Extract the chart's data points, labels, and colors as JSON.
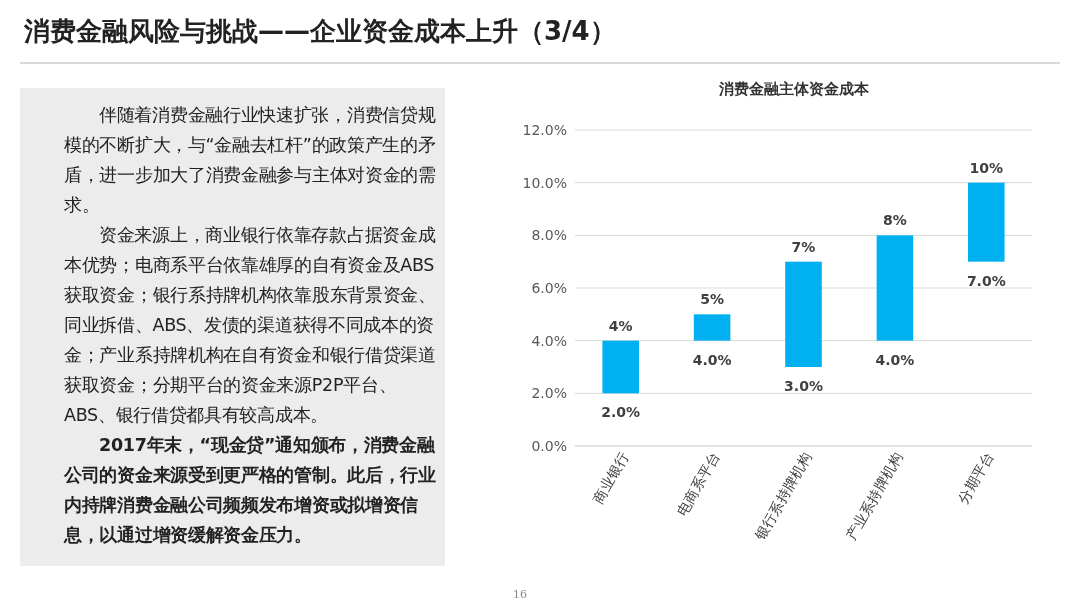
{
  "chart_data": {
    "type": "bar",
    "title": "消费金融风险与挑战——企业资金成本上升（3/4）",
    "subtitle": "消费金融主体资金成本",
    "categories": [
      "商业银行",
      "电商系平台",
      "银行系持牌机构",
      "产业系持牌机构",
      "分期平台"
    ],
    "base": [
      2,
      4,
      3,
      4,
      7
    ],
    "values": [
      2,
      1,
      4,
      4,
      3
    ],
    "color": "#00b0f0",
    "ylim": [
      0,
      12
    ],
    "yticks": [
      {
        "value": 0,
        "label": "0.0%"
      },
      {
        "value": 2,
        "label": "2.0%"
      },
      {
        "value": 4,
        "label": "4.0%"
      },
      {
        "value": 6,
        "label": "6.0%"
      },
      {
        "value": 8,
        "label": "8.0%"
      },
      {
        "value": 10,
        "label": "10.0%"
      },
      {
        "value": 12,
        "label": "12.0%"
      }
    ],
    "grid": "y",
    "annotations": [
      "伴随着消费金融行业快速扩张，消费信贷规模的不断扩大，与“金融去杠杆”的政策产生的矛盾，进一步加大了消费金融参与主体对资金的需求。",
      "资金来源上，商业银行依靠存款占据资金成本优势；电商系平台依靠雄厚的自有资金及ABS获取资金；银行系持牌机构依靠股东背景资金、同业拆借、ABS、发债的渠道获得不同成本的资金；产业系持牌机构在自有资金和银行借贷渠道获取资金；分期平台的资金来源P2P平台、ABS、银行借贷都具有较高成本。",
      "2017年末，“现金贷”通知颁布，消费金融公司的资金来源受到更严格的管制。此后，行业内持牌消费金融公司频频发布增资或拟增资信息，以通过增资缓解资金压力。",
      "16",
      {
        "text": "4%",
        "x": "商业银行",
        "y": 4
      },
      {
        "text": "2.0%",
        "x": "商业银行",
        "y": 2
      },
      {
        "text": "5%",
        "x": "电商系平台",
        "y": 5
      },
      {
        "text": "4.0%",
        "x": "电商系平台",
        "y": 4
      },
      {
        "text": "7%",
        "x": "银行系持牌机构",
        "y": 7
      },
      {
        "text": "3.0%",
        "x": "银行系持牌机构",
        "y": 3
      },
      {
        "text": "8%",
        "x": "产业系持牌机构",
        "y": 8
      },
      {
        "text": "4.0%",
        "x": "产业系持牌机构",
        "y": 4
      },
      {
        "text": "10%",
        "x": "分期平台",
        "y": 10
      },
      {
        "text": "7.0%",
        "x": "分期平台",
        "y": 7
      }
    ]
  }
}
